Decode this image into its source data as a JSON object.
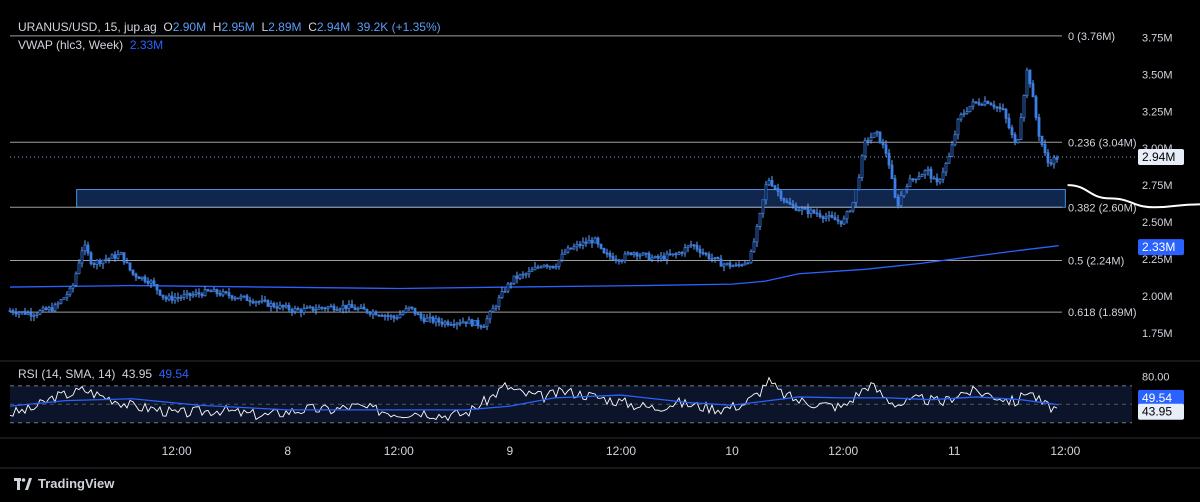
{
  "header": {
    "symbol": "URANUS/USD, 15, jup.ag",
    "o_label": "O",
    "o_value": "2.90M",
    "h_label": "H",
    "h_value": "2.95M",
    "l_label": "L",
    "l_value": "2.89M",
    "c_label": "C",
    "c_value": "2.94M",
    "change": "39.2K (+1.35%)",
    "vwap_label": "VWAP (hlc3, Week)",
    "vwap_value": "2.33M",
    "rsi_label": "RSI (14, SMA, 14)",
    "rsi_value": "43.95",
    "rsi_sma_value": "49.54"
  },
  "brand": "TradingView",
  "colors": {
    "background": "#000000",
    "candle": "#3a7fe6",
    "wick": "#6aa6ff",
    "vwap": "#2962ff",
    "fib_line": "#9e9e9e",
    "zone_fill": "#10264d",
    "zone_border": "#4a90e2",
    "projection": "#ffffff",
    "rsi_line": "#ffffff",
    "rsi_sma": "#2962ff"
  },
  "chart_data": {
    "type": "candlestick",
    "y_axis_ticks": [
      "1.75M",
      "2.00M",
      "2.25M",
      "2.50M",
      "2.75M",
      "3.00M",
      "3.25M",
      "3.50M",
      "3.75M"
    ],
    "y_axis_values": [
      1.75,
      2.0,
      2.25,
      2.5,
      2.75,
      3.0,
      3.25,
      3.5,
      3.75
    ],
    "ylim": [
      1.6,
      3.8
    ],
    "x_axis_ticks": [
      "12:00",
      "8",
      "12:00",
      "9",
      "12:00",
      "10",
      "12:00",
      "11",
      "12:00"
    ],
    "x_range_days": [
      6.75,
      11.8
    ],
    "x_tick_values_days": [
      7.5,
      8.0,
      8.5,
      9.0,
      9.5,
      10.0,
      10.5,
      11.0,
      11.5
    ],
    "last_price_label": "2.94M",
    "vwap_price_label": "2.33M",
    "fib_levels": [
      {
        "label": "0 (3.76M)",
        "value": 3.76
      },
      {
        "label": "0.236 (3.04M)",
        "value": 3.04
      },
      {
        "label": "0.382 (2.60M)",
        "value": 2.6
      },
      {
        "label": "0.5 (2.24M)",
        "value": 2.24
      },
      {
        "label": "0.618 (1.89M)",
        "value": 1.89
      }
    ],
    "zone": {
      "day_start": 7.05,
      "day_end": 11.5,
      "low": 2.6,
      "high": 2.72
    },
    "price_path": [
      [
        6.75,
        1.9
      ],
      [
        6.85,
        1.88
      ],
      [
        6.95,
        1.92
      ],
      [
        7.03,
        2.05
      ],
      [
        7.08,
        2.35
      ],
      [
        7.12,
        2.22
      ],
      [
        7.18,
        2.25
      ],
      [
        7.25,
        2.28
      ],
      [
        7.3,
        2.15
      ],
      [
        7.38,
        2.1
      ],
      [
        7.45,
        1.98
      ],
      [
        7.55,
        2.0
      ],
      [
        7.65,
        2.03
      ],
      [
        7.75,
        2.0
      ],
      [
        7.85,
        1.97
      ],
      [
        7.95,
        1.93
      ],
      [
        8.05,
        1.9
      ],
      [
        8.15,
        1.92
      ],
      [
        8.25,
        1.93
      ],
      [
        8.35,
        1.9
      ],
      [
        8.42,
        1.88
      ],
      [
        8.48,
        1.85
      ],
      [
        8.55,
        1.92
      ],
      [
        8.6,
        1.85
      ],
      [
        8.7,
        1.82
      ],
      [
        8.8,
        1.83
      ],
      [
        8.88,
        1.8
      ],
      [
        8.92,
        1.9
      ],
      [
        8.98,
        2.05
      ],
      [
        9.02,
        2.12
      ],
      [
        9.08,
        2.15
      ],
      [
        9.15,
        2.22
      ],
      [
        9.2,
        2.2
      ],
      [
        9.25,
        2.3
      ],
      [
        9.32,
        2.35
      ],
      [
        9.38,
        2.38
      ],
      [
        9.42,
        2.28
      ],
      [
        9.5,
        2.25
      ],
      [
        9.55,
        2.3
      ],
      [
        9.65,
        2.25
      ],
      [
        9.75,
        2.28
      ],
      [
        9.82,
        2.35
      ],
      [
        9.88,
        2.28
      ],
      [
        9.95,
        2.22
      ],
      [
        10.02,
        2.2
      ],
      [
        10.08,
        2.25
      ],
      [
        10.12,
        2.5
      ],
      [
        10.16,
        2.8
      ],
      [
        10.2,
        2.72
      ],
      [
        10.25,
        2.62
      ],
      [
        10.32,
        2.58
      ],
      [
        10.38,
        2.56
      ],
      [
        10.45,
        2.52
      ],
      [
        10.5,
        2.5
      ],
      [
        10.55,
        2.65
      ],
      [
        10.6,
        3.05
      ],
      [
        10.65,
        3.1
      ],
      [
        10.7,
        2.95
      ],
      [
        10.74,
        2.6
      ],
      [
        10.78,
        2.75
      ],
      [
        10.82,
        2.8
      ],
      [
        10.88,
        2.85
      ],
      [
        10.92,
        2.75
      ],
      [
        10.98,
        2.95
      ],
      [
        11.02,
        3.2
      ],
      [
        11.08,
        3.3
      ],
      [
        11.15,
        3.32
      ],
      [
        11.22,
        3.25
      ],
      [
        11.28,
        3.0
      ],
      [
        11.33,
        3.55
      ],
      [
        11.38,
        3.1
      ],
      [
        11.42,
        2.9
      ],
      [
        11.47,
        2.94
      ]
    ],
    "vwap_path": [
      [
        6.75,
        2.06
      ],
      [
        7.3,
        2.07
      ],
      [
        7.9,
        2.06
      ],
      [
        8.5,
        2.05
      ],
      [
        9.0,
        2.06
      ],
      [
        9.6,
        2.07
      ],
      [
        10.0,
        2.08
      ],
      [
        10.15,
        2.1
      ],
      [
        10.3,
        2.15
      ],
      [
        10.6,
        2.18
      ],
      [
        10.85,
        2.22
      ],
      [
        11.05,
        2.26
      ],
      [
        11.25,
        2.3
      ],
      [
        11.47,
        2.34
      ]
    ],
    "projection_path": [
      [
        11.51,
        2.75
      ],
      [
        11.7,
        2.66
      ],
      [
        11.9,
        2.6
      ],
      [
        12.1,
        2.62
      ],
      [
        12.25,
        2.73
      ],
      [
        12.32,
        2.79
      ]
    ],
    "rsi": {
      "ylim": [
        20,
        85
      ],
      "band_upper": 70,
      "band_lower": 30,
      "scale_label": "80.00",
      "sma_label": "49.54",
      "value_label": "43.95",
      "path": [
        [
          6.75,
          40
        ],
        [
          6.85,
          45
        ],
        [
          6.95,
          58
        ],
        [
          7.03,
          62
        ],
        [
          7.08,
          66
        ],
        [
          7.15,
          60
        ],
        [
          7.22,
          55
        ],
        [
          7.3,
          48
        ],
        [
          7.4,
          45
        ],
        [
          7.5,
          40
        ],
        [
          7.6,
          42
        ],
        [
          7.7,
          44
        ],
        [
          7.8,
          40
        ],
        [
          7.9,
          38
        ],
        [
          8.0,
          42
        ],
        [
          8.1,
          45
        ],
        [
          8.2,
          44
        ],
        [
          8.3,
          48
        ],
        [
          8.4,
          44
        ],
        [
          8.5,
          40
        ],
        [
          8.6,
          42
        ],
        [
          8.7,
          38
        ],
        [
          8.8,
          40
        ],
        [
          8.9,
          55
        ],
        [
          8.98,
          70
        ],
        [
          9.05,
          62
        ],
        [
          9.15,
          58
        ],
        [
          9.25,
          64
        ],
        [
          9.35,
          60
        ],
        [
          9.45,
          55
        ],
        [
          9.55,
          50
        ],
        [
          9.65,
          46
        ],
        [
          9.75,
          52
        ],
        [
          9.85,
          48
        ],
        [
          9.95,
          45
        ],
        [
          10.05,
          50
        ],
        [
          10.12,
          62
        ],
        [
          10.16,
          76
        ],
        [
          10.22,
          62
        ],
        [
          10.3,
          54
        ],
        [
          10.4,
          50
        ],
        [
          10.5,
          47
        ],
        [
          10.56,
          60
        ],
        [
          10.62,
          72
        ],
        [
          10.7,
          55
        ],
        [
          10.75,
          50
        ],
        [
          10.85,
          56
        ],
        [
          10.95,
          52
        ],
        [
          11.02,
          62
        ],
        [
          11.1,
          64
        ],
        [
          11.2,
          58
        ],
        [
          11.28,
          52
        ],
        [
          11.33,
          66
        ],
        [
          11.4,
          50
        ],
        [
          11.47,
          43.95
        ]
      ],
      "sma_path": [
        [
          6.75,
          48
        ],
        [
          7.0,
          54
        ],
        [
          7.3,
          56
        ],
        [
          7.6,
          49
        ],
        [
          8.0,
          44
        ],
        [
          8.4,
          44
        ],
        [
          8.8,
          44
        ],
        [
          9.0,
          48
        ],
        [
          9.2,
          57
        ],
        [
          9.5,
          60
        ],
        [
          9.8,
          52
        ],
        [
          10.0,
          49
        ],
        [
          10.3,
          58
        ],
        [
          10.5,
          57
        ],
        [
          10.7,
          57
        ],
        [
          10.9,
          55
        ],
        [
          11.1,
          58
        ],
        [
          11.3,
          55
        ],
        [
          11.47,
          49.54
        ]
      ]
    }
  }
}
